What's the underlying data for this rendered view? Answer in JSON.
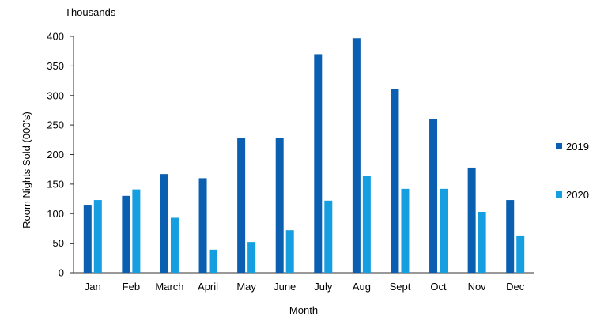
{
  "chart_data": {
    "type": "bar",
    "unit_label": "Thousands",
    "xlabel": "Month",
    "ylabel": "Room Nights Sold (000's)",
    "ylim": [
      0,
      400
    ],
    "yticks": [
      0,
      50,
      100,
      150,
      200,
      250,
      300,
      350,
      400
    ],
    "grid": false,
    "legend_position": "right",
    "categories": [
      "Jan",
      "Feb",
      "March",
      "April",
      "May",
      "June",
      "July",
      "Aug",
      "Sept",
      "Oct",
      "Nov",
      "Dec"
    ],
    "series": [
      {
        "name": "2019",
        "color": "#0b5fb0",
        "values": [
          115,
          130,
          167,
          160,
          228,
          228,
          370,
          397,
          311,
          260,
          178,
          123
        ]
      },
      {
        "name": "2020",
        "color": "#169fe0",
        "values": [
          123,
          141,
          93,
          39,
          52,
          72,
          122,
          164,
          142,
          142,
          103,
          63
        ]
      }
    ]
  }
}
